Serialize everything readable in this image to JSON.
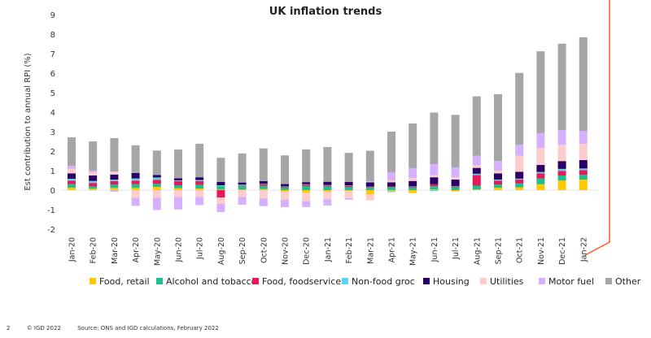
{
  "chart_data": {
    "type": "bar",
    "stacked": true,
    "title": "UK inflation trends",
    "xlabel": "",
    "ylabel": "Est contribution to annual RPI (%)",
    "ylim": [
      -2,
      9
    ],
    "yticks": [
      -2,
      -1,
      0,
      1,
      2,
      3,
      4,
      5,
      6,
      7,
      8,
      9
    ],
    "grid": false,
    "legend": "bottom",
    "categories": [
      "Jan-20",
      "Feb-20",
      "Mar-20",
      "Apr-20",
      "May-20",
      "Jun-20",
      "Jul-20",
      "Aug-20",
      "Sep-20",
      "Oct-20",
      "Nov-20",
      "Dec-20",
      "Jan-21",
      "Feb-21",
      "Mar-21",
      "Apr-21",
      "May-21",
      "Jun-21",
      "Jul-21",
      "Aug-21",
      "Sep-21",
      "Oct-21",
      "Nov-21",
      "Dec-21",
      "Jan-22"
    ],
    "series": [
      {
        "name": "Food, retail",
        "color": "#FFC800",
        "values": [
          0.12,
          0.07,
          0.11,
          0.11,
          0.17,
          0.1,
          0.08,
          0.03,
          0.03,
          0.05,
          -0.08,
          -0.14,
          -0.08,
          -0.05,
          -0.22,
          -0.05,
          -0.15,
          0.03,
          -0.07,
          0.03,
          0.12,
          0.14,
          0.3,
          0.49,
          0.54
        ]
      },
      {
        "name": "Alcohol and tobacco",
        "color": "#1DBF8E",
        "values": [
          0.18,
          0.12,
          0.18,
          0.19,
          0.15,
          0.15,
          0.19,
          0.18,
          0.18,
          0.17,
          0.13,
          0.21,
          0.19,
          0.15,
          0.12,
          0.15,
          0.13,
          0.17,
          0.14,
          0.2,
          0.17,
          0.2,
          0.3,
          0.26,
          0.24
        ]
      },
      {
        "name": "Food, foodservice",
        "color": "#E8185A",
        "values": [
          0.18,
          0.18,
          0.18,
          0.19,
          0.21,
          0.21,
          0.19,
          -0.38,
          0.03,
          0.08,
          0.04,
          0.07,
          0.05,
          0.07,
          0.04,
          0.04,
          0.04,
          0.1,
          0.05,
          0.54,
          0.2,
          0.2,
          0.26,
          0.24,
          0.25
        ]
      },
      {
        "name": "Non-food groc",
        "color": "#5CD3F0",
        "values": [
          0.1,
          0.1,
          0.07,
          0.11,
          0.12,
          0.04,
          0.06,
          0.04,
          0.04,
          0.02,
          0.02,
          0.02,
          0.02,
          0.02,
          0.02,
          -0.05,
          0.02,
          -0.05,
          0.02,
          0.07,
          0.05,
          0.05,
          0.07,
          0.1,
          0.08
        ]
      },
      {
        "name": "Housing",
        "color": "#2B0066",
        "values": [
          0.28,
          0.28,
          0.26,
          0.28,
          0.13,
          0.11,
          0.14,
          0.17,
          0.11,
          0.14,
          0.12,
          0.11,
          0.17,
          0.18,
          0.22,
          0.21,
          0.28,
          0.36,
          0.33,
          0.3,
          0.32,
          0.35,
          0.36,
          0.4,
          0.43
        ]
      },
      {
        "name": "Utilities",
        "color": "#FFCCCC",
        "values": [
          0.24,
          0.17,
          0.15,
          -0.39,
          -0.39,
          -0.35,
          -0.35,
          -0.33,
          -0.36,
          -0.42,
          -0.42,
          -0.42,
          -0.39,
          -0.36,
          -0.3,
          0.1,
          0.15,
          0.1,
          0.12,
          0.12,
          0.14,
          0.82,
          0.87,
          0.83,
          0.83
        ]
      },
      {
        "name": "Motor fuel",
        "color": "#D4B0FF",
        "values": [
          0.14,
          0.08,
          -0.08,
          -0.42,
          -0.63,
          -0.64,
          -0.42,
          -0.42,
          -0.39,
          -0.4,
          -0.38,
          -0.31,
          -0.32,
          -0.08,
          0.05,
          0.4,
          0.5,
          0.57,
          0.5,
          0.5,
          0.49,
          0.57,
          0.76,
          0.75,
          0.67
        ]
      },
      {
        "name": "Other",
        "color": "#A6A6A6",
        "values": [
          1.47,
          1.5,
          1.72,
          1.42,
          1.25,
          1.47,
          1.72,
          1.24,
          1.49,
          1.68,
          1.47,
          1.68,
          1.78,
          1.49,
          1.57,
          2.1,
          2.3,
          2.65,
          2.7,
          3.05,
          3.43,
          3.68,
          4.2,
          4.44,
          4.8
        ]
      }
    ]
  },
  "decoration": {
    "accent_line_color": "#FF5A2A"
  },
  "footer": {
    "page_number": "2",
    "copyright": "© IGD 2022",
    "source": "Source: ONS and IGD calculations, February 2022"
  }
}
